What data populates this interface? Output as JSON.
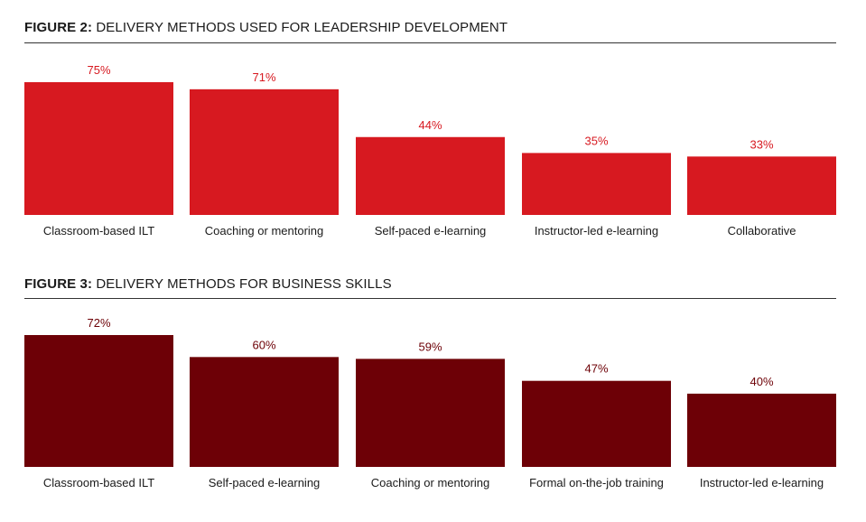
{
  "chart_data": [
    {
      "type": "bar",
      "figure_label": "FIGURE 2:",
      "title": "DELIVERY METHODS USED FOR LEADERSHIP DEVELOPMENT",
      "categories": [
        "Classroom-based ILT",
        "Coaching or mentoring",
        "Self-paced e-learning",
        "Instructor-led e-learning",
        "Collaborative"
      ],
      "values": [
        75,
        71,
        44,
        35,
        33
      ],
      "value_labels": [
        "75%",
        "71%",
        "44%",
        "35%",
        "33%"
      ],
      "unit": "%",
      "color": "#d71920",
      "ylim": [
        0,
        75
      ],
      "xlabel": "",
      "ylabel": "",
      "grid": false
    },
    {
      "type": "bar",
      "figure_label": "FIGURE 3:",
      "title": "DELIVERY METHODS FOR BUSINESS SKILLS",
      "categories": [
        "Classroom-based ILT",
        "Self-paced e-learning",
        "Coaching or mentoring",
        "Formal on-the-job training",
        "Instructor-led e-learning"
      ],
      "values": [
        72,
        60,
        59,
        47,
        40
      ],
      "value_labels": [
        "72%",
        "60%",
        "59%",
        "47%",
        "40%"
      ],
      "unit": "%",
      "color": "#6d0006",
      "ylim": [
        0,
        72
      ],
      "xlabel": "",
      "ylabel": "",
      "grid": false
    }
  ]
}
